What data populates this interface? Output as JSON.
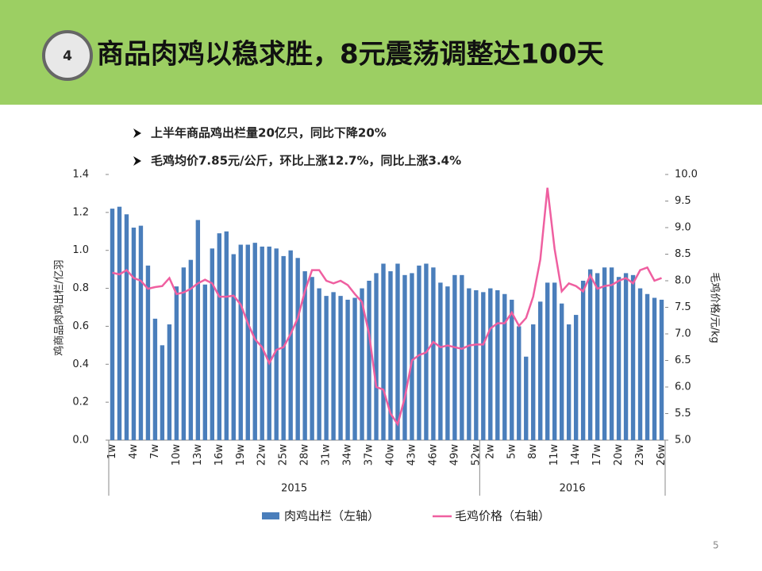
{
  "header": {
    "number": "4",
    "title": "商品肉鸡以稳求胜，8元震荡调整达100天"
  },
  "bullets": [
    "上半年商品鸡出栏量20亿只，同比下降20%",
    "毛鸡均价7.85元/公斤，环比上涨12.7%，同比上涨3.4%"
  ],
  "page_number": "5",
  "chart_data": {
    "type": "bar_line",
    "y_label": "鸡商品肉鸡出栏/亿羽",
    "y2_label": "毛鸡价格/元/kg",
    "year_labels": [
      "2015",
      "2016"
    ],
    "categories": [
      "1w",
      null,
      null,
      "4w",
      null,
      null,
      "7w",
      null,
      null,
      "10w",
      null,
      null,
      "13w",
      null,
      null,
      "16w",
      null,
      null,
      "19w",
      null,
      null,
      "22w",
      null,
      null,
      "25w",
      null,
      null,
      "28w",
      null,
      null,
      "31w",
      null,
      null,
      "34w",
      null,
      null,
      "37w",
      null,
      null,
      "40w",
      null,
      null,
      "43w",
      null,
      null,
      "46w",
      null,
      null,
      "49w",
      null,
      null,
      "52w",
      null,
      "2w",
      null,
      null,
      "5w",
      null,
      null,
      "8w",
      null,
      null,
      "11w",
      null,
      null,
      "14w",
      null,
      null,
      "17w",
      null,
      null,
      "20w",
      null,
      null,
      "23w",
      null,
      null,
      "26w"
    ],
    "series": [
      {
        "name": "肉鸡出栏（左轴）",
        "type": "bar",
        "color": "#4a7ebb",
        "values": [
          1.22,
          1.23,
          1.19,
          1.12,
          1.13,
          0.92,
          0.64,
          0.5,
          0.61,
          0.81,
          0.91,
          0.95,
          1.16,
          0.82,
          1.01,
          1.09,
          1.1,
          0.98,
          1.03,
          1.03,
          1.04,
          1.02,
          1.02,
          1.01,
          0.97,
          1.0,
          0.96,
          0.89,
          0.86,
          0.8,
          0.76,
          0.78,
          0.76,
          0.74,
          0.75,
          0.8,
          0.84,
          0.88,
          0.93,
          0.89,
          0.93,
          0.87,
          0.88,
          0.92,
          0.93,
          0.91,
          0.83,
          0.81,
          0.87,
          0.87,
          0.8,
          0.79,
          0.78,
          0.8,
          0.79,
          0.77,
          0.74,
          0.6,
          0.44,
          0.61,
          0.73,
          0.83,
          0.83,
          0.72,
          0.61,
          0.66,
          0.84,
          0.9,
          0.88,
          0.91,
          0.91,
          0.86,
          0.88,
          0.87,
          0.8,
          0.77,
          0.75,
          0.74
        ]
      },
      {
        "name": "毛鸡价格（右轴）",
        "type": "line",
        "axis": "y2",
        "color": "#ef5fa0",
        "values": [
          8.15,
          8.12,
          8.2,
          8.05,
          8.0,
          7.85,
          7.88,
          7.9,
          8.05,
          7.75,
          7.78,
          7.85,
          7.95,
          8.02,
          7.95,
          7.7,
          7.7,
          7.72,
          7.55,
          7.2,
          6.9,
          6.75,
          6.45,
          6.7,
          6.75,
          7.0,
          7.3,
          7.8,
          8.2,
          8.2,
          8.0,
          7.95,
          8.0,
          7.92,
          7.75,
          7.6,
          7.0,
          6.0,
          5.95,
          5.5,
          5.3,
          5.8,
          6.5,
          6.6,
          6.65,
          6.85,
          6.75,
          6.78,
          6.75,
          6.72,
          6.78,
          6.8,
          6.8,
          7.1,
          7.2,
          7.2,
          7.4,
          7.15,
          7.3,
          7.7,
          8.4,
          9.75,
          8.6,
          7.8,
          7.95,
          7.9,
          7.8,
          8.1,
          7.85,
          7.9,
          7.92,
          8.0,
          8.05,
          7.95,
          8.2,
          8.25,
          8.0,
          8.05
        ]
      }
    ],
    "ylim": [
      0,
      1.4
    ],
    "yticks": [
      {
        "value": 0,
        "label": "0.0"
      },
      0.2,
      0.4,
      0.6,
      0.8,
      {
        "value": 1,
        "label": "1.0"
      },
      1.2,
      1.4
    ],
    "y2lim": [
      5,
      10
    ],
    "y2ticks": [
      {
        "value": 5,
        "label": "5.0"
      },
      5.5,
      {
        "value": 6,
        "label": "6.0"
      },
      6.5,
      {
        "value": 7,
        "label": "7.0"
      },
      7.5,
      {
        "value": 8,
        "label": "8.0"
      },
      8.5,
      {
        "value": 9,
        "label": "9.0"
      },
      9.5,
      {
        "value": 10,
        "label": "10.0"
      }
    ]
  }
}
